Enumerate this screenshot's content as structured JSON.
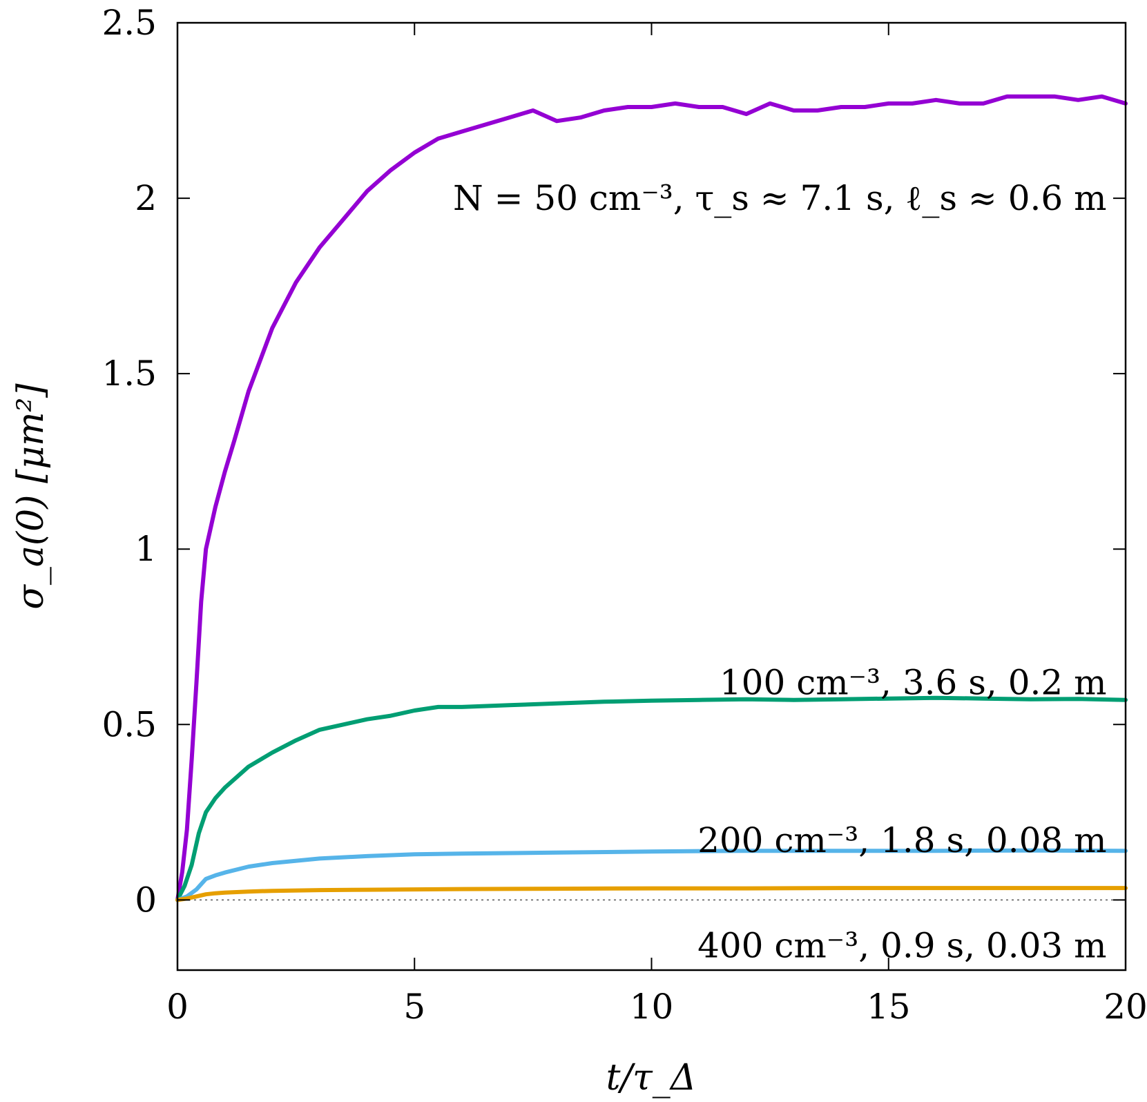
{
  "chart_data": {
    "type": "line",
    "title": "",
    "xlabel": "t/τ_Δ",
    "ylabel": "σ_a(0) [μm²]",
    "xlim": [
      0,
      20
    ],
    "ylim": [
      -0.2,
      2.5
    ],
    "xticks": [
      0,
      5,
      10,
      15,
      20
    ],
    "yticks": [
      0,
      0.5,
      1,
      1.5,
      2,
      2.5
    ],
    "xtick_labels": [
      "0",
      "5",
      "10",
      "15",
      "20"
    ],
    "ytick_labels": [
      "0",
      "0.5",
      "1",
      "1.5",
      "2",
      "2.5"
    ],
    "grid": false,
    "zero_line": "dotted",
    "series": [
      {
        "label": "N = 50 cm⁻³, τ_s ≈ 7.1 s, ℓ_s ≈ 0.6 m",
        "color": "#9400d3",
        "x": [
          0,
          0.1,
          0.2,
          0.3,
          0.4,
          0.5,
          0.6,
          0.8,
          1.0,
          1.2,
          1.5,
          2.0,
          2.5,
          3.0,
          3.5,
          4.0,
          4.5,
          5.0,
          5.5,
          6.0,
          6.5,
          7.0,
          7.5,
          8.0,
          8.5,
          9.0,
          9.5,
          10.0,
          10.5,
          11.0,
          11.5,
          12.0,
          12.5,
          13.0,
          13.5,
          14.0,
          14.5,
          15.0,
          15.5,
          16.0,
          16.5,
          17.0,
          17.5,
          18.0,
          18.5,
          19.0,
          19.5,
          20.0
        ],
        "y": [
          0,
          0.08,
          0.2,
          0.4,
          0.62,
          0.85,
          1.0,
          1.12,
          1.22,
          1.31,
          1.45,
          1.63,
          1.76,
          1.86,
          1.94,
          2.02,
          2.08,
          2.13,
          2.17,
          2.19,
          2.21,
          2.23,
          2.25,
          2.22,
          2.23,
          2.25,
          2.26,
          2.26,
          2.27,
          2.26,
          2.26,
          2.24,
          2.27,
          2.25,
          2.25,
          2.26,
          2.26,
          2.27,
          2.27,
          2.28,
          2.27,
          2.27,
          2.29,
          2.29,
          2.29,
          2.28,
          2.29,
          2.27
        ]
      },
      {
        "label": "100 cm⁻³, 3.6 s, 0.2 m",
        "color": "#009e73",
        "x": [
          0,
          0.15,
          0.3,
          0.45,
          0.6,
          0.8,
          1.0,
          1.5,
          2.0,
          2.5,
          3.0,
          3.5,
          4.0,
          4.5,
          5.0,
          5.5,
          6.0,
          7.0,
          8.0,
          9.0,
          10.0,
          11.0,
          12.0,
          13.0,
          14.0,
          15.0,
          16.0,
          17.0,
          18.0,
          19.0,
          20.0
        ],
        "y": [
          0,
          0.04,
          0.1,
          0.19,
          0.25,
          0.29,
          0.32,
          0.38,
          0.42,
          0.455,
          0.485,
          0.5,
          0.515,
          0.525,
          0.54,
          0.55,
          0.55,
          0.555,
          0.56,
          0.565,
          0.568,
          0.57,
          0.572,
          0.57,
          0.572,
          0.574,
          0.576,
          0.574,
          0.572,
          0.573,
          0.57
        ]
      },
      {
        "label": "200 cm⁻³, 1.8 s, 0.08 m",
        "color": "#56b4e9",
        "x": [
          0,
          0.2,
          0.4,
          0.6,
          0.8,
          1.0,
          1.5,
          2.0,
          3.0,
          4.0,
          5.0,
          6.0,
          8.0,
          10.0,
          12.0,
          14.0,
          16.0,
          18.0,
          20.0
        ],
        "y": [
          0,
          0.01,
          0.03,
          0.06,
          0.07,
          0.078,
          0.095,
          0.105,
          0.118,
          0.125,
          0.13,
          0.132,
          0.135,
          0.138,
          0.14,
          0.14,
          0.14,
          0.141,
          0.14
        ]
      },
      {
        "label": "400 cm⁻³, 0.9 s, 0.03 m",
        "color": "#e69f00",
        "x": [
          0,
          0.2,
          0.4,
          0.6,
          0.8,
          1.0,
          1.5,
          2.0,
          3.0,
          4.0,
          6.0,
          8.0,
          10.0,
          12.0,
          14.0,
          16.0,
          18.0,
          20.0
        ],
        "y": [
          0,
          0.004,
          0.01,
          0.016,
          0.019,
          0.021,
          0.024,
          0.026,
          0.028,
          0.029,
          0.031,
          0.032,
          0.033,
          0.033,
          0.034,
          0.034,
          0.034,
          0.034
        ]
      }
    ],
    "annotations": [
      {
        "text": "N = 50 cm⁻³, τ_s ≈ 7.1 s, ℓ_s ≈ 0.6 m",
        "x": 19.6,
        "y": 2.0,
        "anchor": "end"
      },
      {
        "text": "100 cm⁻³, 3.6 s, 0.2 m",
        "x": 19.6,
        "y": 0.62,
        "anchor": "end"
      },
      {
        "text": "200 cm⁻³, 1.8 s, 0.08 m",
        "x": 19.6,
        "y": 0.17,
        "anchor": "end"
      },
      {
        "text": "400 cm⁻³, 0.9 s, 0.03 m",
        "x": 19.6,
        "y": -0.13,
        "anchor": "end"
      }
    ]
  }
}
